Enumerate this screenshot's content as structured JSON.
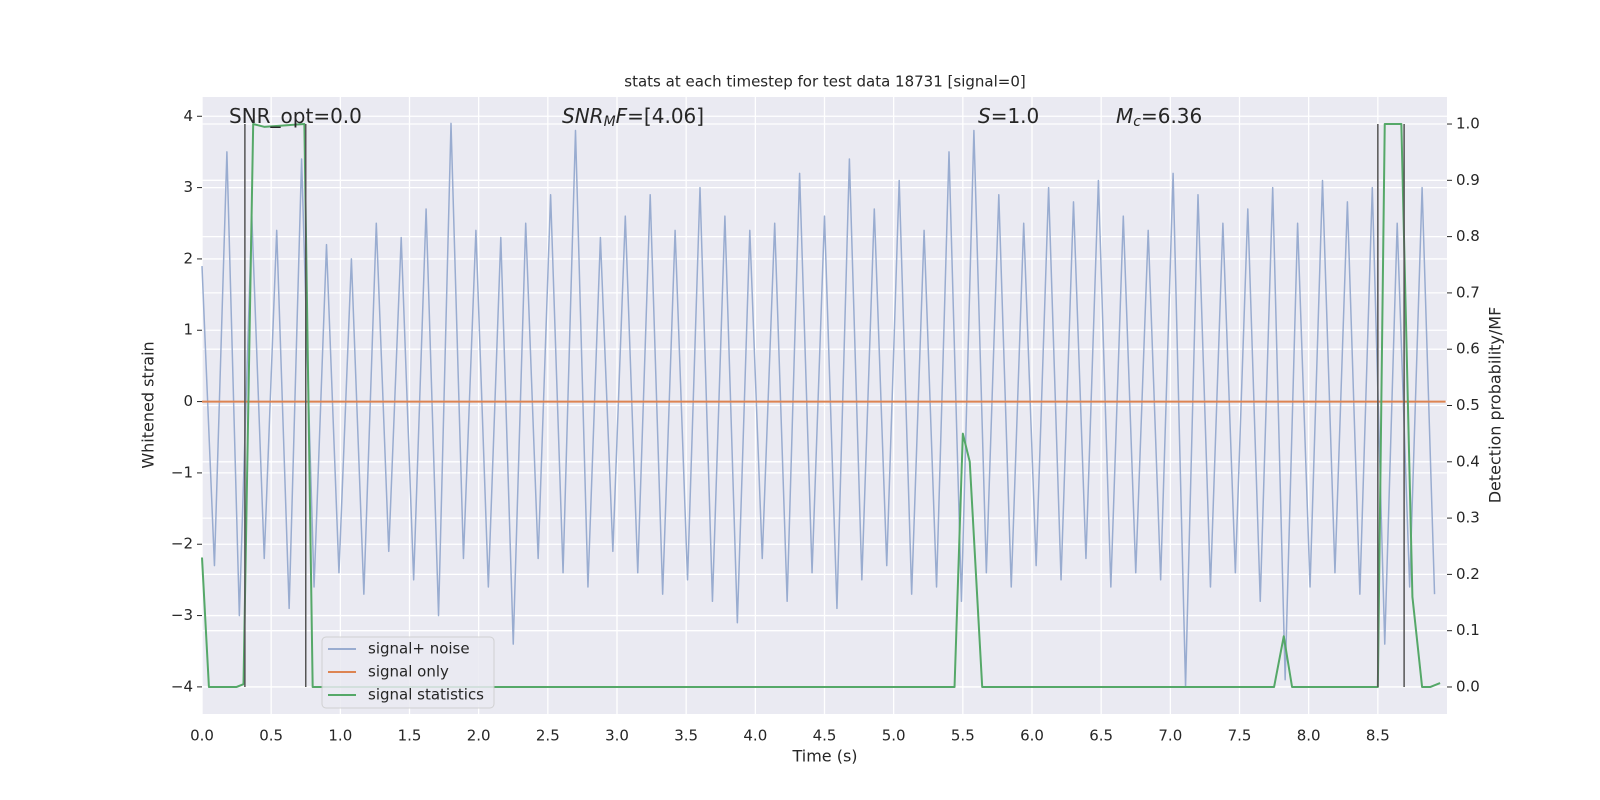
{
  "chart_data": {
    "type": "line",
    "title": "stats at each timestep for test data 18731 [signal=0]",
    "xlabel": "Time (s)",
    "ylabel": "Whitened strain",
    "y2label": "Detection probability/MF",
    "xlim": [
      0,
      9
    ],
    "ylim": [
      -4.38,
      4.27
    ],
    "y2lim": [
      -0.048,
      1.048
    ],
    "xticks": [
      {
        "value": 0,
        "label": "0.0"
      },
      0.5,
      {
        "value": 1,
        "label": "1.0"
      },
      1.5,
      {
        "value": 2,
        "label": "2.0"
      },
      2.5,
      {
        "value": 3,
        "label": "3.0"
      },
      3.5,
      {
        "value": 4,
        "label": "4.0"
      },
      4.5,
      {
        "value": 5,
        "label": "5.0"
      },
      5.5,
      {
        "value": 6,
        "label": "6.0"
      },
      6.5,
      {
        "value": 7,
        "label": "7.0"
      },
      7.5,
      {
        "value": 8,
        "label": "8.0"
      },
      8.5
    ],
    "yticks": [
      {
        "value": -4,
        "label": "−4"
      },
      {
        "value": -3,
        "label": "−3"
      },
      {
        "value": -2,
        "label": "−2"
      },
      {
        "value": -1,
        "label": "−1"
      },
      0,
      1,
      2,
      3,
      4
    ],
    "y2ticks": [
      {
        "value": 0,
        "label": "0.0"
      },
      0.1,
      0.2,
      0.3,
      0.4,
      0.5,
      0.6,
      0.7,
      0.8,
      0.9,
      {
        "value": 1,
        "label": "1.0"
      }
    ],
    "grid": true,
    "legend": "lower left",
    "annotations": [
      [
        {
          "text": "SNR_opt=0.0",
          "style": "normal"
        }
      ],
      [
        {
          "text": "SNR",
          "style": "italic"
        },
        {
          "text": "M",
          "style": "sub"
        },
        {
          "text": "F",
          "style": "italic"
        },
        {
          "text": "=[4.06]",
          "style": "normal"
        }
      ],
      [
        {
          "text": "S",
          "style": "italic"
        },
        {
          "text": "=1.0",
          "style": "normal"
        }
      ],
      [
        {
          "text": "M",
          "style": "italic"
        },
        {
          "text": "c",
          "style": "sub"
        },
        {
          "text": "=6.36",
          "style": "normal"
        }
      ]
    ],
    "vlines": {
      "color": "#555555",
      "x": [
        0.31,
        0.75,
        8.5,
        8.69
      ]
    },
    "series": [
      {
        "name": "signal+ noise",
        "color": "#99acd0",
        "x": [
          0,
          0.09,
          0.18,
          0.27,
          0.36,
          0.45,
          0.54,
          0.63,
          0.72,
          0.81,
          0.9,
          0.99,
          1.08,
          1.17,
          1.26,
          1.35,
          1.44,
          1.53,
          1.62,
          1.71,
          1.8,
          1.89,
          1.98,
          2.07,
          2.16,
          2.25,
          2.34,
          2.43,
          2.52,
          2.61,
          2.7,
          2.79,
          2.88,
          2.97,
          3.06,
          3.15,
          3.24,
          3.33,
          3.42,
          3.51,
          3.6,
          3.69,
          3.78,
          3.87,
          3.96,
          4.05,
          4.14,
          4.23,
          4.32,
          4.41,
          4.5,
          4.59,
          4.68,
          4.77,
          4.86,
          4.95,
          5.04,
          5.13,
          5.22,
          5.31,
          5.4,
          5.49,
          5.58,
          5.67,
          5.76,
          5.85,
          5.94,
          6.03,
          6.12,
          6.21,
          6.3,
          6.39,
          6.48,
          6.57,
          6.66,
          6.75,
          6.84,
          6.93,
          7.02,
          7.11,
          7.2,
          7.29,
          7.38,
          7.47,
          7.56,
          7.65,
          7.74,
          7.83,
          7.92,
          8.01,
          8.1,
          8.19,
          8.28,
          8.37,
          8.46,
          8.55,
          8.64,
          8.73,
          8.82,
          8.91
        ],
        "values": [
          1.9,
          -2.3,
          3.5,
          -3.0,
          2.6,
          -2.2,
          2.4,
          -2.9,
          3.4,
          -2.6,
          2.2,
          -2.4,
          2.0,
          -2.7,
          2.5,
          -2.1,
          2.3,
          -2.5,
          2.7,
          -3.0,
          3.9,
          -2.2,
          2.4,
          -2.6,
          2.3,
          -3.4,
          2.5,
          -2.2,
          2.9,
          -2.4,
          3.8,
          -2.6,
          2.3,
          -2.1,
          2.6,
          -2.4,
          2.9,
          -2.7,
          2.4,
          -2.5,
          3.0,
          -2.8,
          2.6,
          -3.1,
          2.4,
          -2.2,
          2.5,
          -2.8,
          3.2,
          -2.4,
          2.6,
          -2.9,
          3.4,
          -2.5,
          2.7,
          -2.3,
          3.1,
          -2.7,
          2.4,
          -2.6,
          3.5,
          -2.8,
          3.8,
          -2.4,
          2.9,
          -2.6,
          2.5,
          -2.3,
          3.0,
          -2.5,
          2.8,
          -2.2,
          3.1,
          -2.6,
          2.6,
          -2.4,
          2.4,
          -2.5,
          3.2,
          -4.0,
          2.9,
          -2.6,
          2.5,
          -2.4,
          2.7,
          -2.8,
          3.0,
          -3.9,
          2.5,
          -2.6,
          3.1,
          -2.4,
          2.8,
          -2.7,
          3.0,
          -3.4,
          2.5,
          -2.6,
          3.0,
          -2.7
        ]
      },
      {
        "name": "signal only",
        "color": "#dd8452",
        "x": [
          0,
          8.99
        ],
        "values": [
          0,
          0
        ]
      },
      {
        "name": "signal statistics",
        "color": "#55a868",
        "axis": "y2",
        "x": [
          0,
          0.05,
          0.25,
          0.3,
          0.37,
          0.45,
          0.74,
          0.8,
          5.44,
          5.5,
          5.55,
          5.64,
          7.75,
          7.82,
          7.88,
          8.5,
          8.55,
          8.67,
          8.75,
          8.82,
          8.88,
          8.95
        ],
        "values": [
          0.23,
          0.0,
          0.0,
          0.005,
          1.0,
          0.995,
          1.0,
          0.0,
          0.0,
          0.45,
          0.4,
          0.0,
          0.0,
          0.09,
          0.0,
          0.0,
          1.0,
          1.0,
          0.16,
          0.0,
          0.0,
          0.007
        ]
      }
    ]
  }
}
